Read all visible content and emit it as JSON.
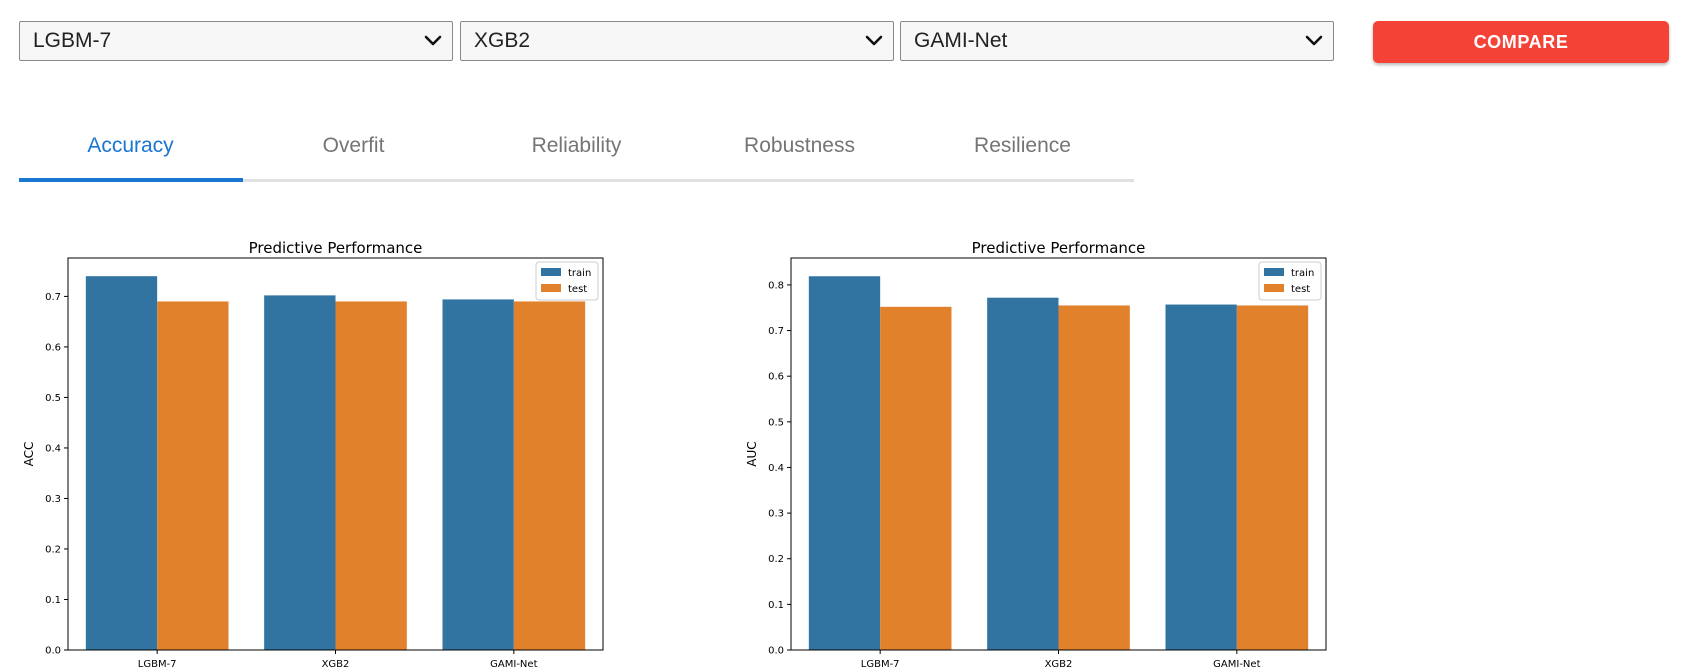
{
  "selectors": [
    {
      "value": "LGBM-7"
    },
    {
      "value": "XGB2"
    },
    {
      "value": "GAMI-Net"
    }
  ],
  "compare_button": {
    "label": "COMPARE"
  },
  "tabs": [
    {
      "label": "Accuracy",
      "active": true
    },
    {
      "label": "Overfit",
      "active": false
    },
    {
      "label": "Reliability",
      "active": false
    },
    {
      "label": "Robustness",
      "active": false
    },
    {
      "label": "Resilience",
      "active": false
    }
  ],
  "colors": {
    "accent": "#1976d2",
    "compare": "#f44336",
    "train": "#3274a1",
    "test": "#e1812c"
  },
  "chart_data": [
    {
      "type": "bar",
      "title": "Predictive Performance",
      "xlabel": "",
      "ylabel": "ACC",
      "categories": [
        "LGBM-7",
        "XGB2",
        "GAMI-Net"
      ],
      "series": [
        {
          "name": "train",
          "values": [
            0.74,
            0.702,
            0.694
          ]
        },
        {
          "name": "test",
          "values": [
            0.69,
            0.69,
            0.69
          ]
        }
      ],
      "ylim": [
        0,
        0.776
      ],
      "yticks": [
        0.0,
        0.1,
        0.2,
        0.3,
        0.4,
        0.5,
        0.6,
        0.7
      ],
      "ytick_labels": [
        "0.0",
        "0.1",
        "0.2",
        "0.3",
        "0.4",
        "0.5",
        "0.6",
        "0.7"
      ],
      "legend_position": "top-right",
      "grid": false
    },
    {
      "type": "bar",
      "title": "Predictive Performance",
      "xlabel": "",
      "ylabel": "AUC",
      "categories": [
        "LGBM-7",
        "XGB2",
        "GAMI-Net"
      ],
      "series": [
        {
          "name": "train",
          "values": [
            0.819,
            0.772,
            0.757
          ]
        },
        {
          "name": "test",
          "values": [
            0.752,
            0.755,
            0.755
          ]
        }
      ],
      "ylim": [
        0,
        0.859
      ],
      "yticks": [
        0.0,
        0.1,
        0.2,
        0.3,
        0.4,
        0.5,
        0.6,
        0.7,
        0.8
      ],
      "ytick_labels": [
        "0.0",
        "0.1",
        "0.2",
        "0.3",
        "0.4",
        "0.5",
        "0.6",
        "0.7",
        "0.8"
      ],
      "legend_position": "top-right",
      "grid": false
    }
  ]
}
